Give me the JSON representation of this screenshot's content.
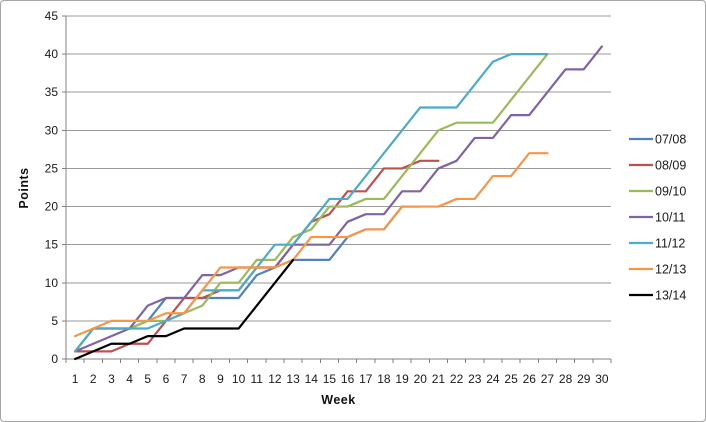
{
  "chart_data": {
    "type": "line",
    "title": "",
    "xlabel": "Week",
    "ylabel": "Points",
    "x_categories": [
      1,
      2,
      3,
      4,
      5,
      6,
      7,
      8,
      9,
      10,
      11,
      12,
      13,
      14,
      15,
      16,
      17,
      18,
      19,
      20,
      21,
      22,
      23,
      24,
      25,
      26,
      27,
      28,
      29,
      30
    ],
    "y_ticks": [
      0,
      5,
      10,
      15,
      20,
      25,
      30,
      35,
      40,
      45
    ],
    "ylim": [
      0,
      45
    ],
    "grid": "horizontal",
    "legend_position": "right",
    "series": [
      {
        "name": "07/08",
        "color": "#4F81BD",
        "values": [
          1,
          4,
          4,
          4,
          5,
          8,
          8,
          8,
          8,
          8,
          11,
          12,
          13,
          13,
          13,
          16,
          17,
          17,
          20,
          20
        ]
      },
      {
        "name": "08/09",
        "color": "#C0504D",
        "values": [
          1,
          1,
          1,
          2,
          2,
          5,
          8,
          8,
          9,
          9,
          12,
          12,
          15,
          18,
          19,
          22,
          22,
          25,
          25,
          26,
          26
        ]
      },
      {
        "name": "09/10",
        "color": "#9BBB59",
        "values": [
          1,
          4,
          4,
          4,
          5,
          5,
          6,
          7,
          10,
          10,
          13,
          13,
          16,
          17,
          20,
          20,
          21,
          21,
          24,
          27,
          30,
          31,
          31,
          31,
          34,
          37,
          40
        ]
      },
      {
        "name": "10/11",
        "color": "#8064A2",
        "values": [
          1,
          2,
          3,
          4,
          7,
          8,
          8,
          11,
          11,
          12,
          12,
          12,
          15,
          15,
          15,
          18,
          19,
          19,
          22,
          22,
          25,
          26,
          29,
          29,
          32,
          32,
          35,
          38,
          38,
          41
        ]
      },
      {
        "name": "11/12",
        "color": "#4BACC6",
        "values": [
          1,
          4,
          4,
          4,
          4,
          5,
          6,
          9,
          9,
          9,
          12,
          15,
          15,
          18,
          21,
          21,
          24,
          27,
          30,
          33,
          33,
          33,
          36,
          39,
          40,
          40,
          40
        ]
      },
      {
        "name": "12/13",
        "color": "#F79646",
        "values": [
          3,
          4,
          5,
          5,
          5,
          6,
          6,
          9,
          12,
          12,
          12,
          12,
          13,
          16,
          16,
          16,
          17,
          17,
          20,
          20,
          20,
          21,
          21,
          24,
          24,
          27,
          27
        ]
      },
      {
        "name": "13/14",
        "color": "#000000",
        "values": [
          0,
          1,
          2,
          2,
          3,
          3,
          4,
          4,
          4,
          4,
          7,
          10,
          13
        ]
      }
    ],
    "styles": {
      "gridline_color": "#9a9a9a",
      "axis_color": "#808080",
      "tick_label_color": "#1a1a1a",
      "legend_label_color": "#1a1a1a"
    }
  }
}
